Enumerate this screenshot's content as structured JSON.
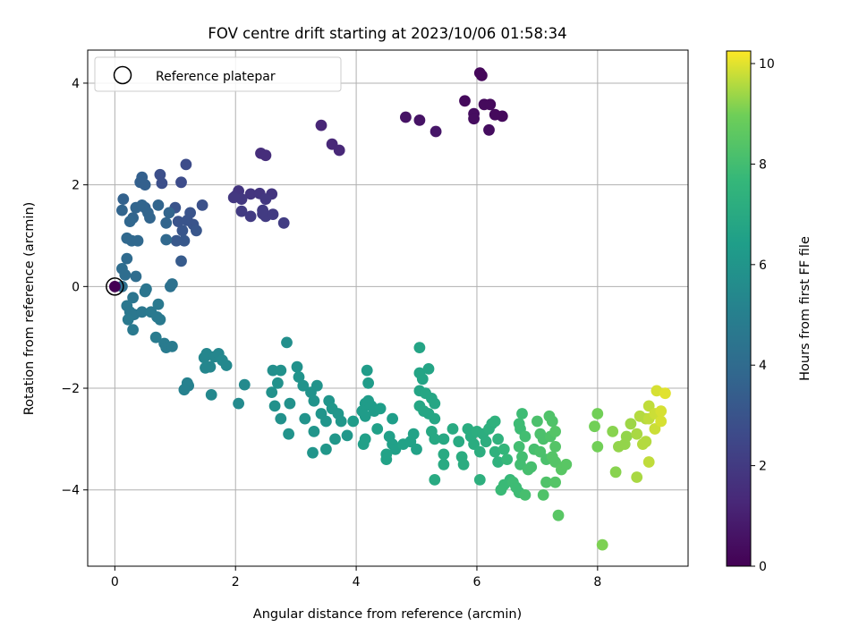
{
  "chart_data": {
    "type": "scatter",
    "title": "FOV centre drift starting at 2023/10/06 01:58:34",
    "xlabel": "Angular distance from reference (arcmin)",
    "ylabel": "Rotation from reference (arcmin)",
    "xlim": [
      -0.45,
      9.5
    ],
    "ylim": [
      -5.5,
      4.65
    ],
    "xticks": [
      0,
      2,
      4,
      6,
      8
    ],
    "yticks": [
      -4,
      -2,
      0,
      2,
      4
    ],
    "grid": true,
    "legend": {
      "position": "top-left",
      "entries": [
        "Reference platepar"
      ]
    },
    "reference_point": [
      0,
      0
    ],
    "colorbar": {
      "label": "Hours from first FF file",
      "colormap": "viridis",
      "range": [
        0,
        10.25
      ],
      "ticks": [
        0,
        2,
        4,
        6,
        8,
        10
      ]
    },
    "points": [
      [
        6.05,
        4.2,
        0.2
      ],
      [
        6.08,
        4.15,
        0.2
      ],
      [
        5.8,
        3.65,
        0.3
      ],
      [
        6.12,
        3.58,
        0.3
      ],
      [
        6.22,
        3.58,
        0.3
      ],
      [
        6.3,
        3.38,
        0.3
      ],
      [
        6.42,
        3.35,
        0.3
      ],
      [
        5.95,
        3.4,
        0.4
      ],
      [
        5.95,
        3.3,
        0.4
      ],
      [
        6.2,
        3.08,
        0.4
      ],
      [
        5.05,
        3.27,
        0.6
      ],
      [
        4.82,
        3.33,
        0.6
      ],
      [
        5.32,
        3.05,
        0.7
      ],
      [
        3.42,
        3.17,
        1.2
      ],
      [
        3.6,
        2.8,
        1.3
      ],
      [
        3.72,
        2.68,
        1.3
      ],
      [
        2.42,
        2.62,
        1.5
      ],
      [
        2.5,
        2.58,
        1.5
      ],
      [
        2.0,
        1.78,
        1.8
      ],
      [
        2.05,
        1.88,
        1.8
      ],
      [
        2.25,
        1.82,
        1.8
      ],
      [
        2.4,
        1.83,
        1.8
      ],
      [
        2.6,
        1.82,
        1.8
      ],
      [
        2.1,
        1.72,
        1.9
      ],
      [
        1.97,
        1.75,
        1.9
      ],
      [
        2.5,
        1.72,
        1.9
      ],
      [
        2.1,
        1.48,
        2.0
      ],
      [
        2.25,
        1.38,
        2.0
      ],
      [
        2.45,
        1.43,
        2.0
      ],
      [
        2.5,
        1.38,
        2.0
      ],
      [
        2.62,
        1.42,
        2.0
      ],
      [
        2.8,
        1.25,
        2.1
      ],
      [
        2.45,
        1.5,
        2.0
      ],
      [
        1.18,
        2.4,
        2.7
      ],
      [
        1.1,
        2.05,
        2.7
      ],
      [
        0.75,
        2.2,
        2.8
      ],
      [
        0.78,
        2.03,
        2.8
      ],
      [
        1.45,
        1.6,
        2.9
      ],
      [
        1.0,
        1.55,
        3.0
      ],
      [
        1.25,
        1.45,
        3.0
      ],
      [
        1.3,
        1.22,
        3.0
      ],
      [
        1.12,
        1.1,
        3.1
      ],
      [
        1.35,
        1.1,
        3.1
      ],
      [
        1.02,
        0.9,
        3.2
      ],
      [
        1.15,
        0.9,
        3.2
      ],
      [
        1.1,
        0.5,
        3.3
      ],
      [
        1.05,
        1.28,
        3.0
      ],
      [
        1.2,
        1.3,
        3.0
      ],
      [
        0.45,
        2.15,
        3.5
      ],
      [
        0.42,
        2.05,
        3.5
      ],
      [
        0.5,
        2.0,
        3.5
      ],
      [
        0.14,
        1.72,
        3.6
      ],
      [
        0.5,
        1.55,
        3.6
      ],
      [
        0.3,
        1.35,
        3.7
      ],
      [
        0.12,
        1.5,
        3.7
      ],
      [
        0.35,
        1.55,
        3.7
      ],
      [
        0.45,
        1.6,
        3.7
      ],
      [
        0.55,
        1.45,
        3.7
      ],
      [
        0.72,
        1.6,
        3.7
      ],
      [
        0.9,
        1.45,
        3.7
      ],
      [
        0.58,
        1.35,
        3.7
      ],
      [
        0.25,
        1.28,
        3.8
      ],
      [
        0.85,
        1.25,
        3.7
      ],
      [
        0.2,
        0.95,
        3.9
      ],
      [
        0.28,
        0.9,
        3.9
      ],
      [
        0.38,
        0.9,
        3.9
      ],
      [
        0.85,
        0.92,
        3.9
      ],
      [
        0.2,
        0.55,
        4.0
      ],
      [
        0.12,
        0.35,
        4.1
      ],
      [
        0.17,
        0.23,
        4.1
      ],
      [
        0.35,
        0.2,
        4.1
      ],
      [
        0.12,
        0.0,
        4.2
      ],
      [
        0.92,
        0.0,
        4.3
      ],
      [
        0.95,
        0.05,
        4.3
      ],
      [
        0.3,
        -0.22,
        4.5
      ],
      [
        0.52,
        -0.05,
        4.5
      ],
      [
        0.5,
        -0.1,
        4.5
      ],
      [
        0.2,
        -0.38,
        4.6
      ],
      [
        0.25,
        -0.5,
        4.6
      ],
      [
        0.32,
        -0.55,
        4.6
      ],
      [
        0.45,
        -0.5,
        4.6
      ],
      [
        0.22,
        -0.65,
        4.7
      ],
      [
        0.3,
        -0.85,
        4.7
      ],
      [
        0.6,
        -0.5,
        4.7
      ],
      [
        0.72,
        -0.35,
        4.7
      ],
      [
        0.7,
        -0.6,
        4.7
      ],
      [
        0.75,
        -0.65,
        4.7
      ],
      [
        0.68,
        -1.0,
        4.8
      ],
      [
        0.82,
        -1.12,
        4.8
      ],
      [
        0.85,
        -1.2,
        4.8
      ],
      [
        0.95,
        -1.18,
        4.8
      ],
      [
        1.2,
        -1.9,
        5.1
      ],
      [
        1.22,
        -1.95,
        5.1
      ],
      [
        1.15,
        -2.03,
        5.1
      ],
      [
        1.48,
        -1.4,
        5.3
      ],
      [
        1.52,
        -1.32,
        5.3
      ],
      [
        1.65,
        -1.38,
        5.3
      ],
      [
        1.72,
        -1.32,
        5.3
      ],
      [
        1.58,
        -1.58,
        5.3
      ],
      [
        1.5,
        -1.6,
        5.3
      ],
      [
        1.78,
        -1.45,
        5.4
      ],
      [
        1.85,
        -1.55,
        5.4
      ],
      [
        1.6,
        -2.13,
        5.4
      ],
      [
        2.15,
        -1.93,
        5.5
      ],
      [
        2.05,
        -2.3,
        5.5
      ],
      [
        2.85,
        -1.1,
        5.7
      ],
      [
        2.62,
        -1.65,
        5.7
      ],
      [
        2.6,
        -2.08,
        5.8
      ],
      [
        2.75,
        -1.65,
        5.8
      ],
      [
        2.7,
        -1.9,
        5.8
      ],
      [
        2.65,
        -2.35,
        5.8
      ],
      [
        2.75,
        -2.6,
        5.8
      ],
      [
        2.9,
        -2.3,
        5.8
      ],
      [
        2.88,
        -2.9,
        5.9
      ],
      [
        3.02,
        -1.58,
        5.8
      ],
      [
        3.05,
        -1.78,
        5.9
      ],
      [
        3.12,
        -1.95,
        5.9
      ],
      [
        3.25,
        -2.08,
        5.9
      ],
      [
        3.3,
        -2.25,
        5.9
      ],
      [
        3.35,
        -1.95,
        5.9
      ],
      [
        3.15,
        -2.6,
        5.9
      ],
      [
        3.3,
        -2.85,
        6.0
      ],
      [
        3.28,
        -3.27,
        6.0
      ],
      [
        3.42,
        -2.5,
        6.0
      ],
      [
        3.5,
        -2.65,
        6.0
      ],
      [
        3.55,
        -2.25,
        6.0
      ],
      [
        3.6,
        -2.4,
        6.1
      ],
      [
        3.7,
        -2.5,
        6.1
      ],
      [
        3.75,
        -2.65,
        6.1
      ],
      [
        3.65,
        -3.0,
        6.1
      ],
      [
        3.5,
        -3.2,
        6.1
      ],
      [
        3.85,
        -2.93,
        6.1
      ],
      [
        3.95,
        -2.65,
        6.3
      ],
      [
        4.1,
        -2.45,
        6.3
      ],
      [
        4.15,
        -2.55,
        6.3
      ],
      [
        4.15,
        -2.3,
        6.3
      ],
      [
        4.2,
        -2.25,
        6.3
      ],
      [
        4.25,
        -2.35,
        6.3
      ],
      [
        4.3,
        -2.45,
        6.3
      ],
      [
        4.18,
        -1.65,
        6.3
      ],
      [
        4.2,
        -1.9,
        6.3
      ],
      [
        4.4,
        -2.4,
        6.4
      ],
      [
        4.6,
        -2.6,
        6.4
      ],
      [
        4.35,
        -2.8,
        6.5
      ],
      [
        4.12,
        -3.1,
        6.5
      ],
      [
        4.15,
        -3.0,
        6.5
      ],
      [
        4.55,
        -2.95,
        6.5
      ],
      [
        4.6,
        -3.1,
        6.5
      ],
      [
        4.65,
        -3.2,
        6.5
      ],
      [
        4.78,
        -3.1,
        6.6
      ],
      [
        4.9,
        -3.05,
        6.6
      ],
      [
        4.95,
        -2.9,
        6.6
      ],
      [
        5.0,
        -3.2,
        6.6
      ],
      [
        4.5,
        -3.3,
        6.6
      ],
      [
        4.5,
        -3.4,
        6.6
      ],
      [
        5.05,
        -1.2,
        6.7
      ],
      [
        5.05,
        -1.7,
        6.7
      ],
      [
        5.1,
        -1.82,
        6.7
      ],
      [
        5.2,
        -1.62,
        6.7
      ],
      [
        5.05,
        -2.05,
        6.7
      ],
      [
        5.15,
        -2.1,
        6.8
      ],
      [
        5.25,
        -2.2,
        6.8
      ],
      [
        5.3,
        -2.3,
        6.8
      ],
      [
        5.05,
        -2.35,
        6.8
      ],
      [
        5.12,
        -2.45,
        6.8
      ],
      [
        5.2,
        -2.5,
        6.8
      ],
      [
        5.3,
        -2.6,
        6.8
      ],
      [
        5.25,
        -2.85,
        6.9
      ],
      [
        5.3,
        -3.0,
        6.9
      ],
      [
        5.45,
        -3.0,
        6.9
      ],
      [
        5.45,
        -3.3,
        7.0
      ],
      [
        5.45,
        -3.5,
        7.0
      ],
      [
        5.3,
        -3.8,
        7.0
      ],
      [
        5.6,
        -2.8,
        7.0
      ],
      [
        5.7,
        -3.05,
        7.0
      ],
      [
        5.75,
        -3.35,
        7.1
      ],
      [
        5.78,
        -3.5,
        7.1
      ],
      [
        5.85,
        -2.8,
        7.1
      ],
      [
        5.9,
        -2.95,
        7.1
      ],
      [
        5.95,
        -3.1,
        7.1
      ],
      [
        6.0,
        -2.85,
        7.2
      ],
      [
        6.1,
        -2.9,
        7.2
      ],
      [
        6.15,
        -3.05,
        7.2
      ],
      [
        6.05,
        -3.25,
        7.2
      ],
      [
        6.05,
        -3.8,
        7.3
      ],
      [
        6.2,
        -2.8,
        7.3
      ],
      [
        6.25,
        -2.7,
        7.3
      ],
      [
        6.3,
        -2.65,
        7.4
      ],
      [
        6.35,
        -3.0,
        7.4
      ],
      [
        6.3,
        -3.25,
        7.4
      ],
      [
        6.35,
        -3.45,
        7.4
      ],
      [
        6.45,
        -3.2,
        7.6
      ],
      [
        6.5,
        -3.4,
        7.7
      ],
      [
        6.55,
        -3.8,
        7.7
      ],
      [
        6.45,
        -3.9,
        7.8
      ],
      [
        6.4,
        -4.0,
        7.8
      ],
      [
        6.6,
        -3.85,
        7.9
      ],
      [
        6.65,
        -3.95,
        7.9
      ],
      [
        6.7,
        -4.05,
        7.9
      ],
      [
        6.7,
        -2.7,
        7.9
      ],
      [
        6.72,
        -2.8,
        7.9
      ],
      [
        6.75,
        -2.5,
        7.9
      ],
      [
        6.8,
        -2.95,
        8.0
      ],
      [
        6.7,
        -3.15,
        8.0
      ],
      [
        6.75,
        -3.35,
        8.0
      ],
      [
        6.72,
        -3.5,
        8.0
      ],
      [
        6.85,
        -3.6,
        8.1
      ],
      [
        6.8,
        -4.1,
        8.1
      ],
      [
        6.9,
        -3.55,
        8.1
      ],
      [
        6.95,
        -3.2,
        8.1
      ],
      [
        7.0,
        -2.65,
        8.2
      ],
      [
        7.05,
        -2.9,
        8.2
      ],
      [
        7.1,
        -3.0,
        8.2
      ],
      [
        7.15,
        -3.4,
        8.2
      ],
      [
        7.05,
        -3.25,
        8.2
      ],
      [
        7.1,
        -4.1,
        8.3
      ],
      [
        7.15,
        -3.85,
        8.3
      ],
      [
        7.2,
        -2.55,
        8.3
      ],
      [
        7.25,
        -2.65,
        8.3
      ],
      [
        7.22,
        -2.95,
        8.3
      ],
      [
        7.3,
        -2.85,
        8.4
      ],
      [
        7.3,
        -3.15,
        8.4
      ],
      [
        7.25,
        -3.35,
        8.4
      ],
      [
        7.3,
        -3.45,
        8.4
      ],
      [
        7.3,
        -3.85,
        8.4
      ],
      [
        7.35,
        -4.5,
        8.5
      ],
      [
        7.4,
        -3.6,
        8.5
      ],
      [
        7.48,
        -3.5,
        8.5
      ],
      [
        7.95,
        -2.75,
        9.0
      ],
      [
        8.0,
        -2.5,
        9.0
      ],
      [
        8.0,
        -3.15,
        9.0
      ],
      [
        8.08,
        -5.08,
        9.1
      ],
      [
        8.25,
        -2.85,
        9.2
      ],
      [
        8.3,
        -3.65,
        9.2
      ],
      [
        8.35,
        -3.15,
        9.3
      ],
      [
        8.45,
        -3.1,
        9.3
      ],
      [
        8.48,
        -2.95,
        9.3
      ],
      [
        8.55,
        -2.7,
        9.4
      ],
      [
        8.65,
        -2.9,
        9.5
      ],
      [
        8.65,
        -3.75,
        9.5
      ],
      [
        8.7,
        -2.55,
        9.6
      ],
      [
        8.75,
        -3.1,
        9.6
      ],
      [
        8.8,
        -3.05,
        9.6
      ],
      [
        8.8,
        -2.6,
        9.6
      ],
      [
        8.85,
        -2.35,
        9.7
      ],
      [
        8.85,
        -2.6,
        9.7
      ],
      [
        8.85,
        -3.45,
        9.7
      ],
      [
        8.95,
        -2.8,
        9.8
      ],
      [
        8.95,
        -2.5,
        9.8
      ],
      [
        8.98,
        -2.05,
        9.9
      ],
      [
        9.05,
        -2.45,
        9.9
      ],
      [
        9.05,
        -2.65,
        9.9
      ],
      [
        9.12,
        -2.1,
        10.0
      ]
    ]
  }
}
